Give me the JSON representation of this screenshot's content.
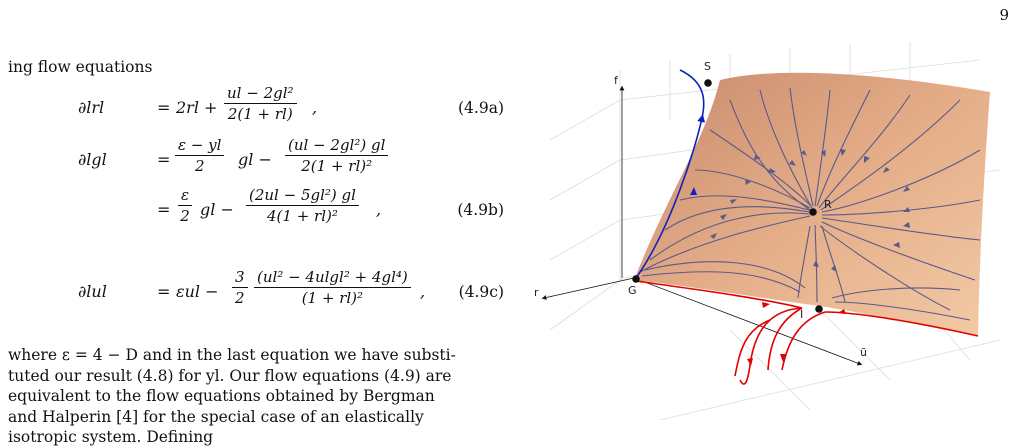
{
  "page": {
    "number": "9"
  },
  "lead": "ing flow equations",
  "equations": [
    {
      "lhs": "∂lrl",
      "rel": "=",
      "rhs_a": "2rl +",
      "num": "ul − 2gl²",
      "den": "2(1 + rl)",
      "tail": ",",
      "label": "(4.9a)"
    },
    {
      "lhs": "∂lgl",
      "rel": "=",
      "f1_num": "ε − yl",
      "f1_den": "2",
      "mid": "gl −",
      "num": "(ul − 2gl²) gl",
      "den": "2(1 + rl)²",
      "tail": "",
      "label": ""
    },
    {
      "lhs": "",
      "rel": "=",
      "f1_num": "ε",
      "f1_den": "2",
      "mid": "gl −",
      "num": "(2ul − 5gl²) gl",
      "den": "4(1 + rl)²",
      "tail": ",",
      "label": "(4.9b)"
    },
    {
      "lhs": "∂lul",
      "rel": "=",
      "rhs_a": "εul −",
      "f1_num": "3",
      "f1_den": "2",
      "num": "(ul² − 4ulgl² + 4gl⁴)",
      "den": "(1 + rl)²",
      "tail": ",",
      "label": "(4.9c)"
    }
  ],
  "paragraph": [
    "where ε = 4 − D and in the last equation we have substi-",
    "tuted our result (4.8) for yl. Our flow equations (4.9) are",
    "equivalent to the flow equations obtained by Bergman",
    "and Halperin [4] for the special case of an elastically",
    "isotropic system. Defining"
  ],
  "figure": {
    "axis_labels": {
      "f": "f",
      "r": "r",
      "u": "ũ"
    },
    "fixed_points": {
      "S": "S",
      "R": "R",
      "G": "G",
      "I": "I"
    },
    "colors": {
      "surface_light": "#f3c9a4",
      "surface_dark": "#b07560",
      "flow": "#5a5a8a",
      "blue_trajectory": "#1020c0",
      "red_trajectory": "#e00000"
    }
  }
}
